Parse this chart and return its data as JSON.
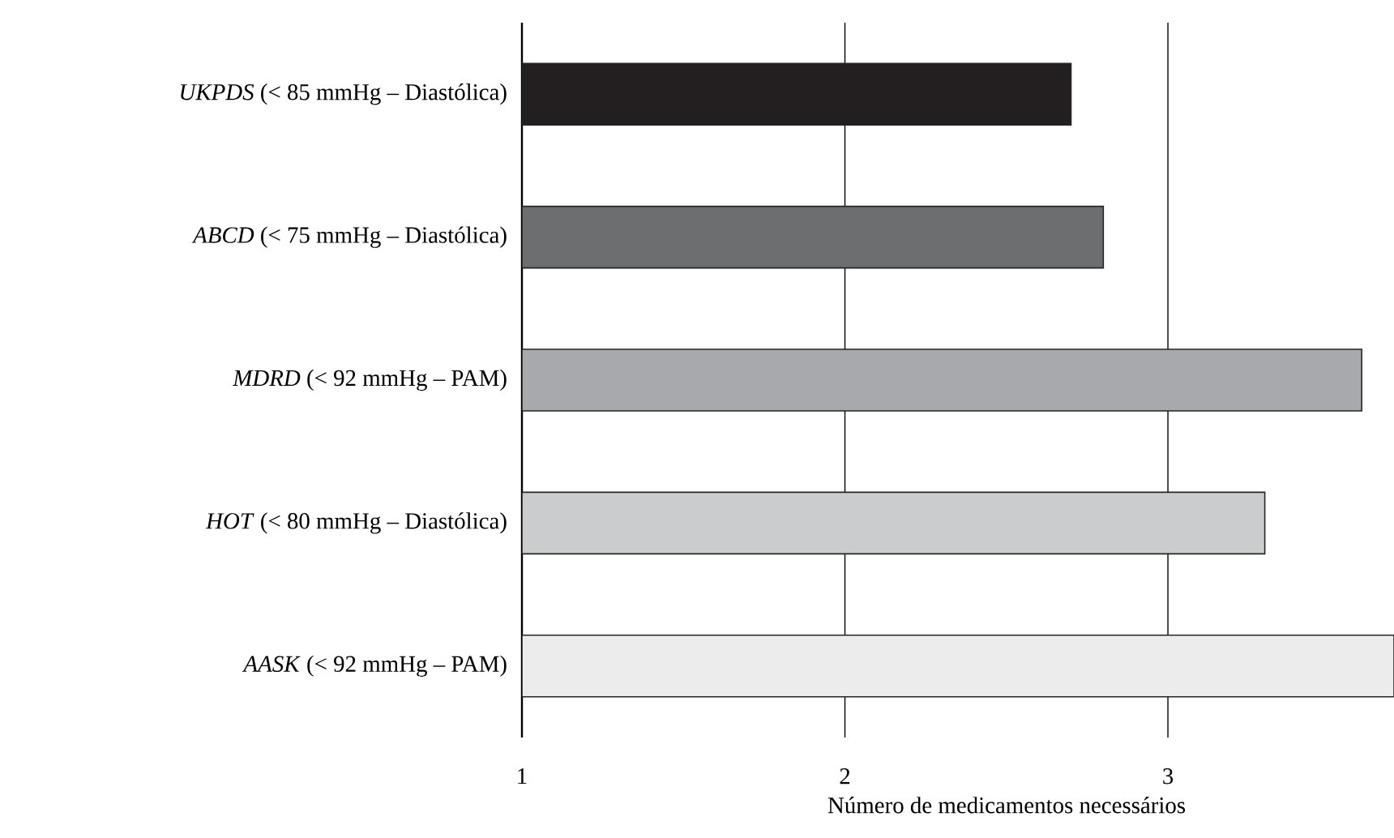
{
  "chart_data": {
    "type": "bar",
    "orientation": "horizontal",
    "categories": [
      "*UKPDS* (< 85 mmHg – Diastólica)",
      "*ABCD* (< 75 mmHg – Diastólica)",
      "*MDRD* (< 92 mmHg – PAM)",
      "*HOT* (< 80 mmHg – Diastólica)",
      "*AASK* (< 92 mmHg – PAM)"
    ],
    "values": [
      2.7,
      2.8,
      3.6,
      3.3,
      3.7
    ],
    "colors": [
      "#231f20",
      "#6d6e70",
      "#a7a9ac",
      "#cbcccd",
      "#ececec"
    ],
    "xlim": [
      1,
      3.7
    ],
    "xticks": [
      1,
      2,
      3
    ],
    "grid": "x",
    "xlabel": "Número de medicamentos necessários"
  }
}
